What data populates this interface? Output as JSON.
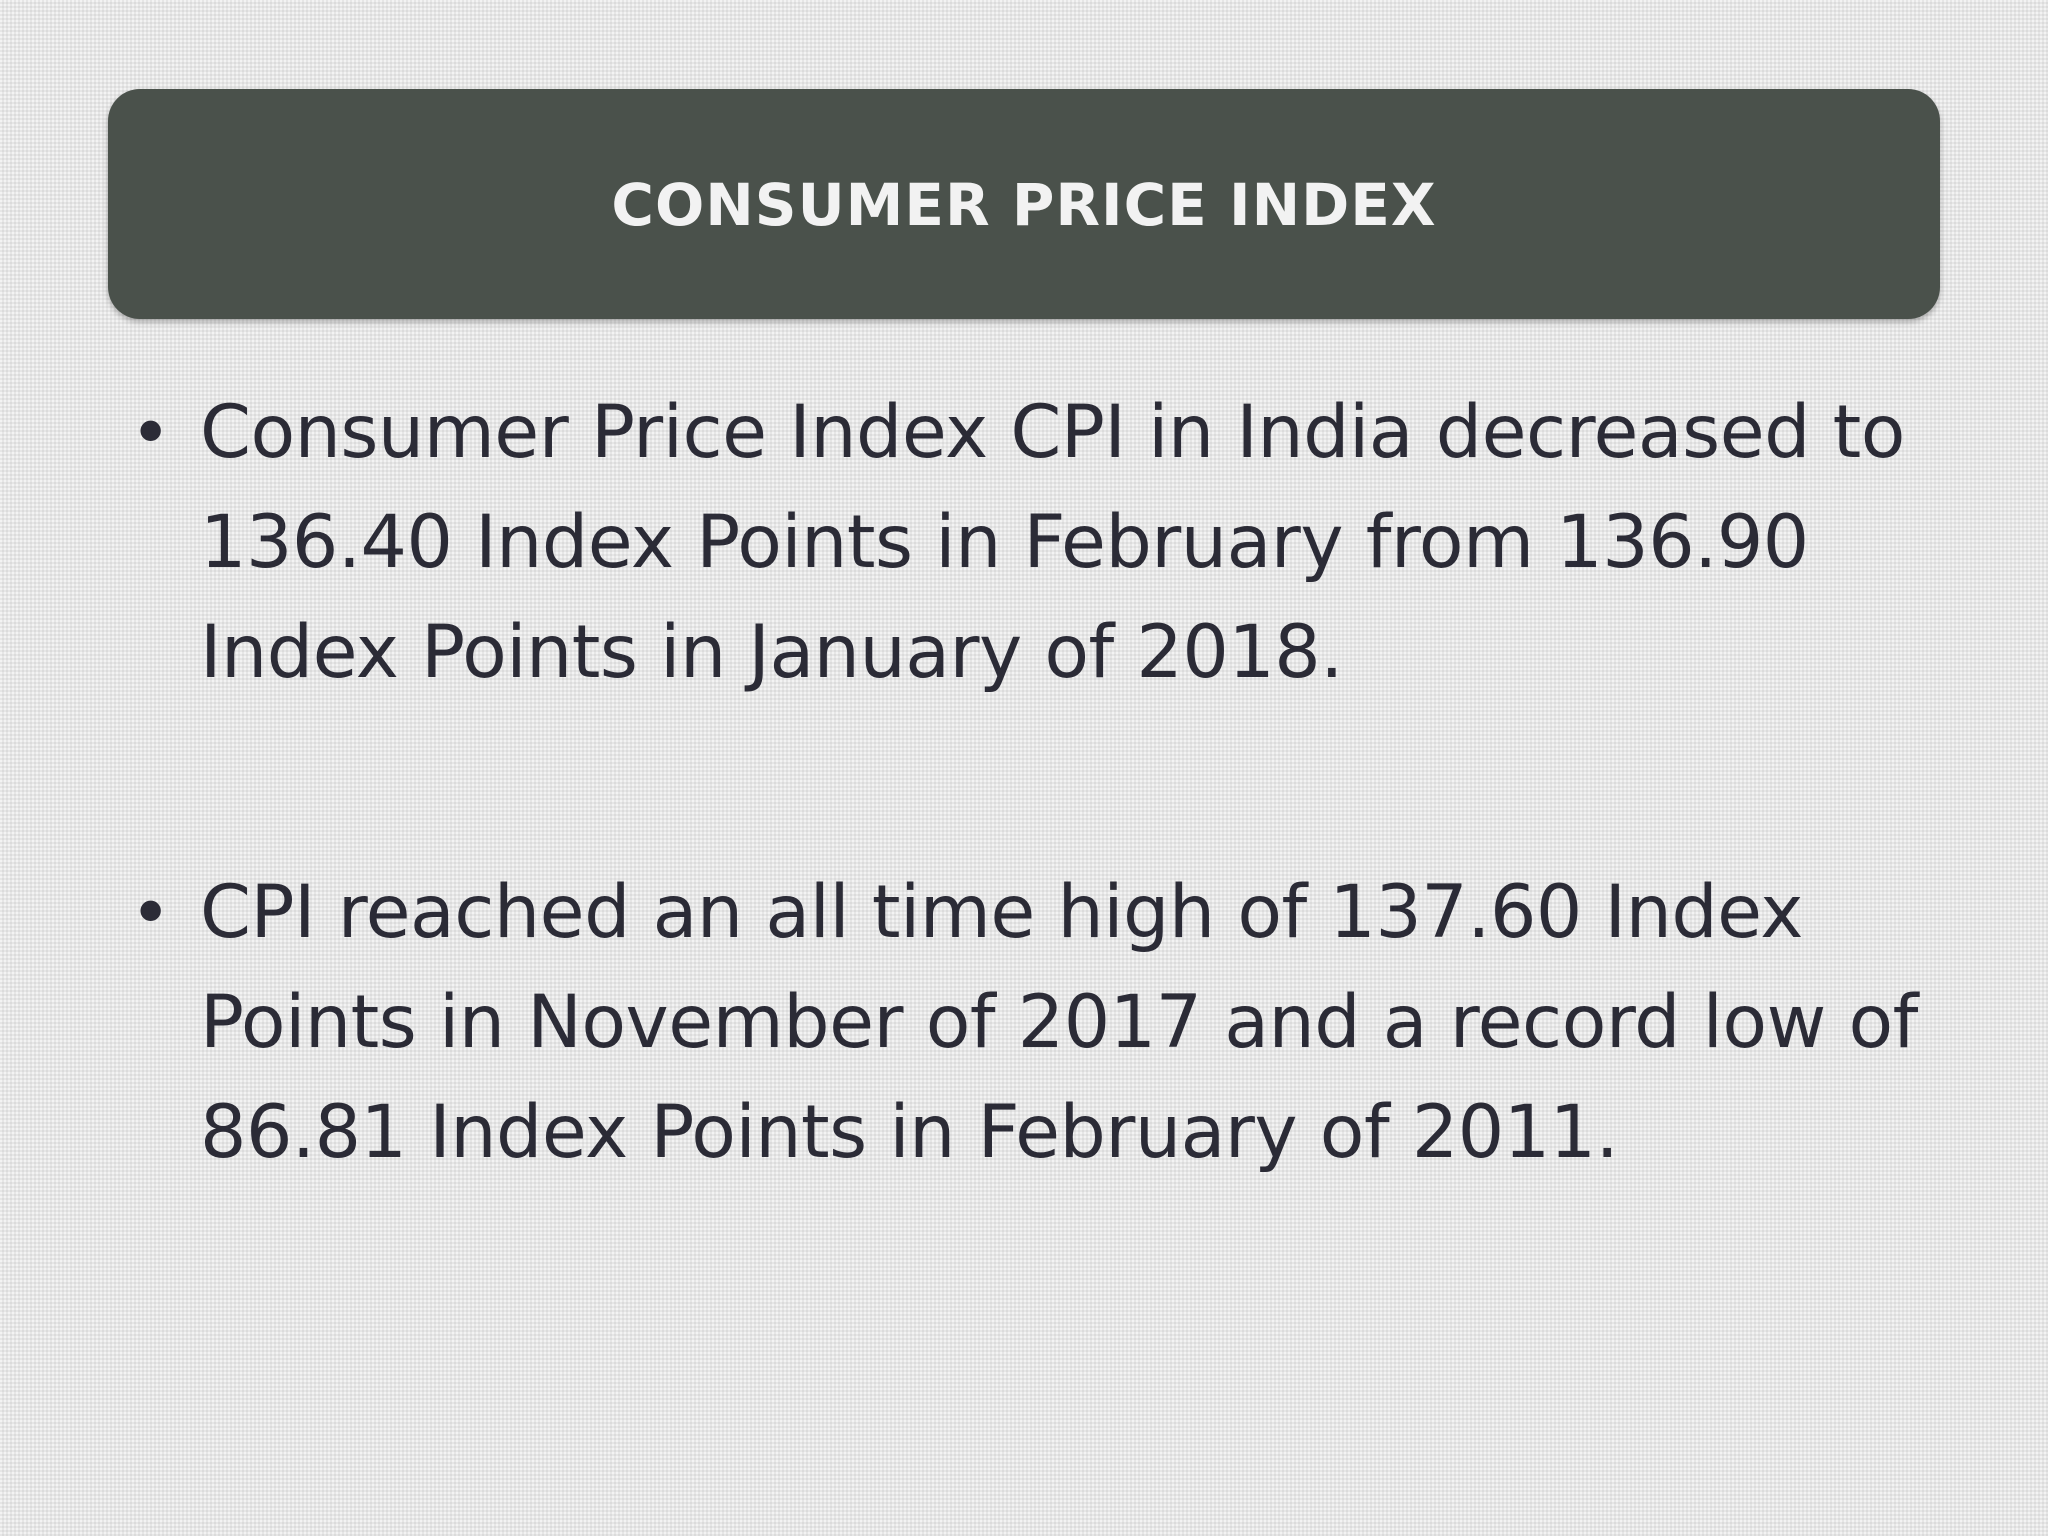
{
  "slide": {
    "title": "CONSUMER PRICE INDEX",
    "bullets": [
      "Consumer Price Index CPI in India decreased to 136.40 Index Points in February from 136.90 Index Points in January of 2018.",
      "CPI reached an all time high of 137.60 Index Points in November of 2017 and a record low of 86.81 Index Points in February of 2011."
    ]
  },
  "colors": {
    "banner_background": "#4a514b",
    "banner_text": "#f2f2f2",
    "body_text": "#2b2b36",
    "page_background": "#e6e6e6"
  }
}
